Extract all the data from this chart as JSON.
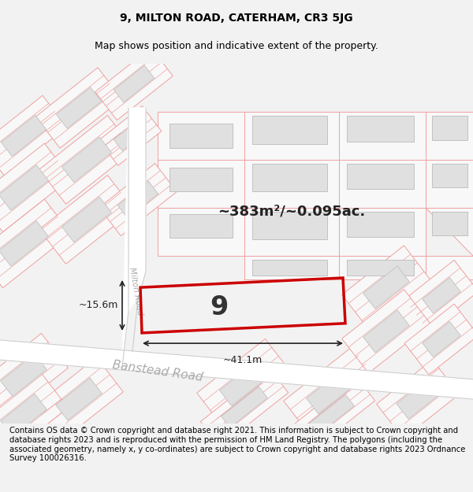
{
  "title_line1": "9, MILTON ROAD, CATERHAM, CR3 5JG",
  "title_line2": "Map shows position and indicative extent of the property.",
  "footer_text": "Contains OS data © Crown copyright and database right 2021. This information is subject to Crown copyright and database rights 2023 and is reproduced with the permission of HM Land Registry. The polygons (including the associated geometry, namely x, y co-ordinates) are subject to Crown copyright and database rights 2023 Ordnance Survey 100026316.",
  "area_label": "~383m²/~0.095ac.",
  "property_number": "9",
  "dim_width": "~41.1m",
  "dim_height": "~15.6m",
  "road_label1": "Banstead Road",
  "road_label2": "Milton Road",
  "parcel_line_color": "#f0a0a0",
  "building_fill": "#e0e0e0",
  "building_edge": "#bbbbbb",
  "road_fill": "#ffffff",
  "road_edge": "#cccccc",
  "property_edge": "#cc0000",
  "arrow_color": "#222222",
  "road_text_color": "#999999",
  "title_fontsize": 10,
  "subtitle_fontsize": 9,
  "footer_fontsize": 7.2,
  "area_fontsize": 13
}
